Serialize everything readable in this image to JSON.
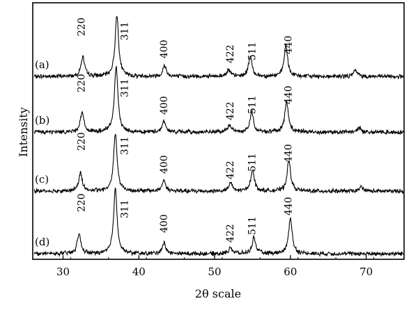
{
  "chart_data": {
    "type": "line",
    "title": "",
    "xlabel": "2θ scale",
    "ylabel": "Intensity",
    "xlim": [
      26,
      75
    ],
    "x_ticks": [
      "30",
      "40",
      "50",
      "60",
      "70"
    ],
    "y_ticks": [],
    "grid": false,
    "legend": "none",
    "peak_labels": [
      {
        "text": "220",
        "x": 32.4
      },
      {
        "text": "311",
        "x": 37.0
      },
      {
        "text": "400",
        "x": 43.3
      },
      {
        "text": "422",
        "x": 52.0
      },
      {
        "text": "511",
        "x": 54.9
      },
      {
        "text": "440",
        "x": 59.7
      }
    ],
    "series": [
      {
        "name": "(a)",
        "baseline": 1.0,
        "peaks": [
          {
            "x": 32.6,
            "height": 0.55
          },
          {
            "x": 37.1,
            "height": 1.7
          },
          {
            "x": 43.4,
            "height": 0.3
          },
          {
            "x": 51.8,
            "height": 0.2
          },
          {
            "x": 54.7,
            "height": 0.55
          },
          {
            "x": 59.4,
            "height": 0.85
          },
          {
            "x": 68.6,
            "height": 0.18
          }
        ]
      },
      {
        "name": "(b)",
        "baseline": 1.0,
        "peaks": [
          {
            "x": 32.5,
            "height": 0.55
          },
          {
            "x": 37.0,
            "height": 1.8
          },
          {
            "x": 43.3,
            "height": 0.3
          },
          {
            "x": 52.0,
            "height": 0.2
          },
          {
            "x": 54.9,
            "height": 0.55
          },
          {
            "x": 59.5,
            "height": 0.85
          },
          {
            "x": 69.1,
            "height": 0.12
          }
        ]
      },
      {
        "name": "(c)",
        "baseline": 1.0,
        "peaks": [
          {
            "x": 32.3,
            "height": 0.5
          },
          {
            "x": 36.9,
            "height": 1.6
          },
          {
            "x": 43.3,
            "height": 0.3
          },
          {
            "x": 52.1,
            "height": 0.22
          },
          {
            "x": 55.0,
            "height": 0.6
          },
          {
            "x": 59.8,
            "height": 0.85
          },
          {
            "x": 69.4,
            "height": 0.12
          }
        ]
      },
      {
        "name": "(d)",
        "baseline": 1.0,
        "peaks": [
          {
            "x": 32.1,
            "height": 0.55
          },
          {
            "x": 36.9,
            "height": 1.8
          },
          {
            "x": 43.3,
            "height": 0.3
          },
          {
            "x": 52.1,
            "height": 0.18
          },
          {
            "x": 55.2,
            "height": 0.45
          },
          {
            "x": 60.0,
            "height": 1.0
          }
        ]
      }
    ]
  }
}
